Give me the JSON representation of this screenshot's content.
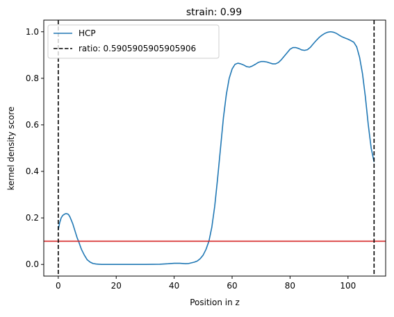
{
  "chart_data": {
    "type": "line",
    "title": "strain: 0.99",
    "xlabel": "Position in z",
    "ylabel": "kernel density score",
    "xlim": [
      -5,
      113
    ],
    "ylim": [
      -0.05,
      1.05
    ],
    "xticks": [
      0,
      20,
      40,
      60,
      80,
      100
    ],
    "yticks": [
      0.0,
      0.2,
      0.4,
      0.6,
      0.8,
      1.0
    ],
    "xtick_labels": [
      "0",
      "20",
      "40",
      "60",
      "80",
      "100"
    ],
    "ytick_labels": [
      "0.0",
      "0.2",
      "0.4",
      "0.6",
      "0.8",
      "1.0"
    ],
    "grid": false,
    "legend_position": "top-left",
    "series": [
      {
        "name": "HCP",
        "color": "#1f77b4",
        "x": [
          0,
          0.5,
          1,
          1.5,
          2,
          2.5,
          3,
          3.5,
          4,
          4.5,
          5,
          5.5,
          6,
          6.5,
          7,
          7.5,
          8,
          9,
          10,
          11,
          12,
          13,
          14,
          15,
          16,
          18,
          20,
          25,
          30,
          35,
          38,
          40,
          42,
          44,
          45,
          46,
          47,
          48,
          49,
          50,
          51,
          52,
          53,
          54,
          55,
          56,
          57,
          58,
          59,
          60,
          61,
          62,
          63,
          64,
          65,
          66,
          67,
          68,
          69,
          70,
          71,
          72,
          73,
          74,
          75,
          76,
          77,
          78,
          79,
          80,
          81,
          82,
          83,
          84,
          85,
          86,
          87,
          88,
          89,
          90,
          91,
          92,
          93,
          94,
          95,
          96,
          97,
          98,
          99,
          100,
          101,
          102,
          103,
          104,
          105,
          106,
          107,
          108,
          109
        ],
        "values": [
          0.15,
          0.18,
          0.2,
          0.21,
          0.215,
          0.218,
          0.218,
          0.215,
          0.205,
          0.19,
          0.175,
          0.155,
          0.135,
          0.115,
          0.1,
          0.082,
          0.065,
          0.04,
          0.02,
          0.01,
          0.004,
          0.002,
          0.001,
          0.0,
          0.0,
          0.0,
          0.0,
          0.0,
          0.0,
          0.001,
          0.003,
          0.005,
          0.005,
          0.003,
          0.004,
          0.007,
          0.01,
          0.015,
          0.025,
          0.04,
          0.065,
          0.1,
          0.16,
          0.25,
          0.37,
          0.5,
          0.63,
          0.73,
          0.8,
          0.84,
          0.86,
          0.865,
          0.862,
          0.857,
          0.85,
          0.848,
          0.853,
          0.86,
          0.868,
          0.872,
          0.872,
          0.87,
          0.866,
          0.862,
          0.862,
          0.868,
          0.88,
          0.895,
          0.91,
          0.925,
          0.932,
          0.932,
          0.928,
          0.922,
          0.92,
          0.923,
          0.933,
          0.948,
          0.962,
          0.975,
          0.985,
          0.993,
          0.998,
          1.0,
          0.998,
          0.993,
          0.985,
          0.978,
          0.973,
          0.968,
          0.962,
          0.955,
          0.935,
          0.89,
          0.82,
          0.72,
          0.6,
          0.5,
          0.44
        ]
      }
    ],
    "vlines": [
      {
        "x": 0,
        "color": "#000000",
        "style": "dashed",
        "label": "ratio: 0.5905905905905906"
      },
      {
        "x": 109,
        "color": "#000000",
        "style": "dashed"
      }
    ],
    "hlines": [
      {
        "y": 0.1,
        "color": "#d62728"
      }
    ],
    "legend": [
      {
        "label": "HCP",
        "style": "solid",
        "color": "#1f77b4"
      },
      {
        "label": "ratio: 0.5905905905905906",
        "style": "dashed",
        "color": "#000000"
      }
    ]
  }
}
